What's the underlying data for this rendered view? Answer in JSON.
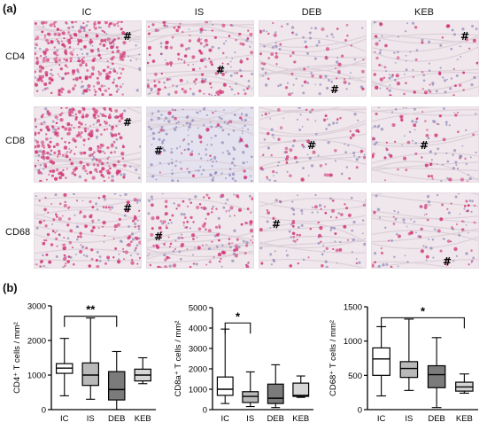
{
  "figure": {
    "panel_a_label": "(a)",
    "panel_b_label": "(b)",
    "columns": [
      "IC",
      "IS",
      "DEB",
      "KEB"
    ],
    "rows": [
      "CD4",
      "CD8",
      "CD68"
    ],
    "marker": "#",
    "tiles": [
      {
        "row": 0,
        "col": 0,
        "stain": "heavy",
        "marker_pos": "top-right"
      },
      {
        "row": 0,
        "col": 1,
        "stain": "moderate",
        "marker_pos": "mid-right"
      },
      {
        "row": 0,
        "col": 2,
        "stain": "light",
        "marker_pos": "bottom-right"
      },
      {
        "row": 0,
        "col": 3,
        "stain": "light",
        "marker_pos": "top-right"
      },
      {
        "row": 1,
        "col": 0,
        "stain": "heavy",
        "marker_pos": "top-right"
      },
      {
        "row": 1,
        "col": 1,
        "stain": "blue",
        "marker_pos": "mid-left"
      },
      {
        "row": 1,
        "col": 2,
        "stain": "light",
        "marker_pos": "mid-center"
      },
      {
        "row": 1,
        "col": 3,
        "stain": "light",
        "marker_pos": "mid-center"
      },
      {
        "row": 2,
        "col": 0,
        "stain": "moderate",
        "marker_pos": "top-right"
      },
      {
        "row": 2,
        "col": 1,
        "stain": "moderate",
        "marker_pos": "mid-left"
      },
      {
        "row": 2,
        "col": 2,
        "stain": "light",
        "marker_pos": "top-left"
      },
      {
        "row": 2,
        "col": 3,
        "stain": "light",
        "marker_pos": "bottom-right"
      }
    ]
  },
  "colors": {
    "stain_pink": "#d23a78",
    "tissue_light": "#efe7ec",
    "nuclei_blue": "#8d86b8",
    "box_white": "#ffffff",
    "box_grey": "#b9b9b9",
    "box_dark": "#7b7b7b",
    "box_light": "#d6d6d6"
  },
  "chart_data": [
    {
      "type": "boxplot",
      "ylabel": "CD4⁺ T cells / mm²",
      "ylim": [
        0,
        3000
      ],
      "yticks": [
        0,
        1000,
        2000,
        3000
      ],
      "categories": [
        "IC",
        "IS",
        "DEB",
        "KEB"
      ],
      "boxes": [
        {
          "min": 400,
          "q1": 1050,
          "median": 1200,
          "q3": 1330,
          "max": 2060,
          "fill": "white"
        },
        {
          "min": 300,
          "q1": 700,
          "median": 1000,
          "q3": 1350,
          "max": 2650,
          "fill": "grey"
        },
        {
          "min": 0,
          "q1": 280,
          "median": 580,
          "q3": 1100,
          "max": 1680,
          "fill": "dark"
        },
        {
          "min": 750,
          "q1": 830,
          "median": 1000,
          "q3": 1170,
          "max": 1500,
          "fill": "light"
        }
      ],
      "significance": {
        "from": 0,
        "to": 2,
        "label": "**",
        "y": 2700
      }
    },
    {
      "type": "boxplot",
      "ylabel": "CD8a⁺ T cells / mm²",
      "ylim": [
        0,
        5000
      ],
      "yticks": [
        0,
        1000,
        2000,
        3000,
        4000,
        5000
      ],
      "categories": [
        "IC",
        "IS",
        "DEB",
        "KEB"
      ],
      "boxes": [
        {
          "min": 300,
          "q1": 700,
          "median": 1000,
          "q3": 1600,
          "max": 3950,
          "fill": "white"
        },
        {
          "min": 150,
          "q1": 350,
          "median": 650,
          "q3": 880,
          "max": 1850,
          "fill": "grey"
        },
        {
          "min": 100,
          "q1": 300,
          "median": 560,
          "q3": 1250,
          "max": 2200,
          "fill": "dark"
        },
        {
          "min": 600,
          "q1": 650,
          "median": 700,
          "q3": 1300,
          "max": 1650,
          "fill": "light"
        }
      ],
      "significance": {
        "from": 0,
        "to": 1,
        "label": "*",
        "y": 4250
      }
    },
    {
      "type": "boxplot",
      "ylabel": "CD68⁺ T cells / mm²",
      "ylim": [
        0,
        1500
      ],
      "yticks": [
        0,
        500,
        1000,
        1500
      ],
      "categories": [
        "IC",
        "IS",
        "DEB",
        "KEB"
      ],
      "boxes": [
        {
          "min": 200,
          "q1": 500,
          "median": 740,
          "q3": 900,
          "max": 1210,
          "fill": "white"
        },
        {
          "min": 280,
          "q1": 470,
          "median": 600,
          "q3": 700,
          "max": 1320,
          "fill": "grey"
        },
        {
          "min": 30,
          "q1": 320,
          "median": 510,
          "q3": 640,
          "max": 1050,
          "fill": "dark"
        },
        {
          "min": 240,
          "q1": 270,
          "median": 330,
          "q3": 400,
          "max": 520,
          "fill": "light"
        }
      ],
      "significance": {
        "from": 0,
        "to": 3,
        "label": "*",
        "y": 1340
      }
    }
  ]
}
